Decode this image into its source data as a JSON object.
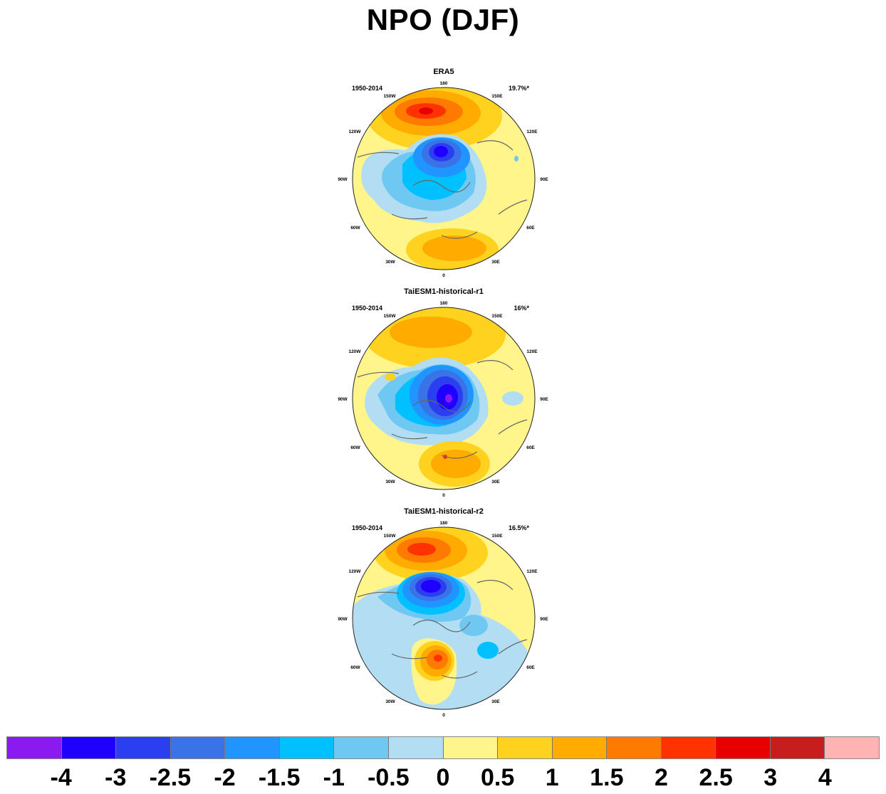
{
  "figure": {
    "title": "NPO (DJF)"
  },
  "panels": [
    {
      "title": "ERA5",
      "period": "1950-2014",
      "percent": "19.7%*"
    },
    {
      "title": "TaiESM1-historical-r1",
      "period": "1950-2014",
      "percent": "16%*"
    },
    {
      "title": "TaiESM1-historical-r2",
      "period": "1950-2014",
      "percent": "16.5%*"
    }
  ],
  "longitude_labels": {
    "top": "180",
    "w150": "150W",
    "e150": "150E",
    "w120": "120W",
    "e120": "120E",
    "w90": "90W",
    "e90": "90E",
    "w60": "60W",
    "e60": "60E",
    "w30": "30W",
    "e30": "30E",
    "bottom": "0"
  },
  "colorbar": {
    "colors": [
      "#8a1af0",
      "#1f00ff",
      "#2c3ff0",
      "#3a73e8",
      "#2095ff",
      "#00c0ff",
      "#6fc8f2",
      "#b3ddf2",
      "#fff58a",
      "#ffd21f",
      "#ffab00",
      "#ff7a00",
      "#ff3300",
      "#e60000",
      "#c81d1d",
      "#ffb3b3"
    ],
    "labels": [
      "-4",
      "-3",
      "-2.5",
      "-2",
      "-1.5",
      "-1",
      "-0.5",
      "0",
      "0.5",
      "1",
      "1.5",
      "2",
      "2.5",
      "3",
      "4"
    ]
  }
}
